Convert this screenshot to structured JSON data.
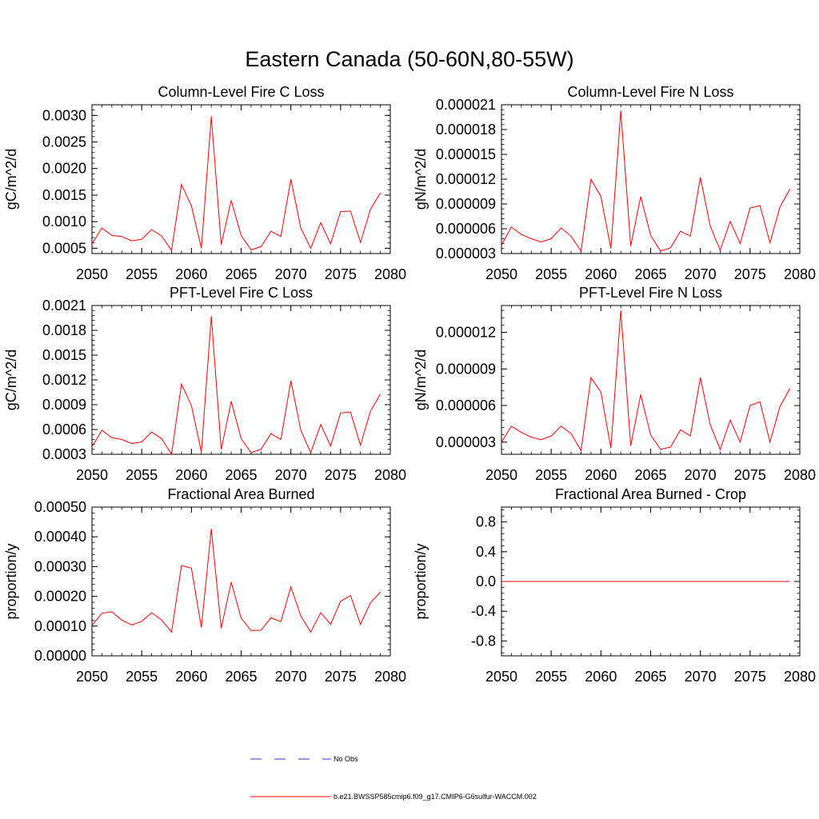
{
  "figure": {
    "title": "Eastern Canada (50-60N,80-55W)"
  },
  "legend": {
    "entries": [
      {
        "label": "No Obs",
        "color": "#3333cc",
        "style": "dashed"
      },
      {
        "label": "b.e21.BWSSP585cmip6.f09_g17.CMIP6-G6sulfur-WACCM.002",
        "color": "#ff0000",
        "style": "solid"
      }
    ]
  },
  "chart_data": [
    {
      "type": "line",
      "title": "Column-Level Fire C Loss",
      "ylabel": "gC/m^2/d",
      "xlim": [
        2050,
        2080
      ],
      "ylim": [
        0.0004,
        0.0032
      ],
      "xticks": [
        "2050",
        "2055",
        "2060",
        "2065",
        "2070",
        "2075",
        "2080"
      ],
      "yticks": [
        "0.0005",
        "0.0010",
        "0.0015",
        "0.0020",
        "0.0025",
        "0.0030"
      ],
      "ytick_values": [
        0.0005,
        0.001,
        0.0015,
        0.002,
        0.0025,
        0.003
      ],
      "series": [
        {
          "color": "#ff0000",
          "x": [
            2050,
            2051,
            2052,
            2053,
            2054,
            2055,
            2056,
            2057,
            2058,
            2059,
            2060,
            2061,
            2062,
            2063,
            2064,
            2065,
            2066,
            2067,
            2068,
            2069,
            2070,
            2071,
            2072,
            2073,
            2074,
            2075,
            2076,
            2077,
            2078,
            2079
          ],
          "values": [
            0.00058,
            0.00088,
            0.00074,
            0.00072,
            0.00064,
            0.00067,
            0.00085,
            0.00073,
            0.00046,
            0.0017,
            0.0013,
            0.0005,
            0.00298,
            0.00057,
            0.0014,
            0.00074,
            0.00047,
            0.00053,
            0.00082,
            0.00072,
            0.0018,
            0.00088,
            0.0005,
            0.00098,
            0.00058,
            0.00119,
            0.0012,
            0.00061,
            0.00123,
            0.00154
          ]
        }
      ]
    },
    {
      "type": "line",
      "title": "Column-Level Fire N Loss",
      "ylabel": "gN/m^2/d",
      "xlim": [
        2050,
        2080
      ],
      "ylim": [
        3e-06,
        2.1e-05
      ],
      "xticks": [
        "2050",
        "2055",
        "2060",
        "2065",
        "2070",
        "2075",
        "2080"
      ],
      "yticks": [
        "0.000003",
        "0.000006",
        "0.000009",
        "0.000012",
        "0.000015",
        "0.000018",
        "0.000021"
      ],
      "ytick_values": [
        3e-06,
        6e-06,
        9e-06,
        1.2e-05,
        1.5e-05,
        1.8e-05,
        2.1e-05
      ],
      "series": [
        {
          "color": "#ff0000",
          "x": [
            2050,
            2051,
            2052,
            2053,
            2054,
            2055,
            2056,
            2057,
            2058,
            2059,
            2060,
            2061,
            2062,
            2063,
            2064,
            2065,
            2066,
            2067,
            2068,
            2069,
            2070,
            2071,
            2072,
            2073,
            2074,
            2075,
            2076,
            2077,
            2078,
            2079
          ],
          "values": [
            4e-06,
            6.2e-06,
            5.3e-06,
            4.8e-06,
            4.4e-06,
            4.8e-06,
            6.1e-06,
            5.1e-06,
            3.3e-06,
            1.2e-05,
            9.9e-06,
            3.6e-06,
            2.03e-05,
            3.9e-06,
            9.9e-06,
            5.2e-06,
            3.3e-06,
            3.7e-06,
            5.7e-06,
            5.1e-06,
            1.22e-05,
            6.3e-06,
            3.4e-06,
            6.9e-06,
            4.2e-06,
            8.5e-06,
            8.8e-06,
            4.3e-06,
            8.6e-06,
            1.08e-05
          ]
        }
      ]
    },
    {
      "type": "line",
      "title": "PFT-Level Fire C Loss",
      "ylabel": "gC/m^2/d",
      "xlim": [
        2050,
        2080
      ],
      "ylim": [
        0.0003,
        0.0021
      ],
      "xticks": [
        "2050",
        "2055",
        "2060",
        "2065",
        "2070",
        "2075",
        "2080"
      ],
      "yticks": [
        "0.0003",
        "0.0006",
        "0.0009",
        "0.0012",
        "0.0015",
        "0.0018",
        "0.0021"
      ],
      "ytick_values": [
        0.0003,
        0.0006,
        0.0009,
        0.0012,
        0.0015,
        0.0018,
        0.0021
      ],
      "series": [
        {
          "color": "#ff0000",
          "x": [
            2050,
            2051,
            2052,
            2053,
            2054,
            2055,
            2056,
            2057,
            2058,
            2059,
            2060,
            2061,
            2062,
            2063,
            2064,
            2065,
            2066,
            2067,
            2068,
            2069,
            2070,
            2071,
            2072,
            2073,
            2074,
            2075,
            2076,
            2077,
            2078,
            2079
          ],
          "values": [
            0.00039,
            0.00059,
            0.0005,
            0.00048,
            0.00043,
            0.00045,
            0.00057,
            0.00049,
            0.0003,
            0.00115,
            0.00089,
            0.00033,
            0.00197,
            0.00036,
            0.00094,
            0.00049,
            0.00032,
            0.00036,
            0.00055,
            0.00048,
            0.00119,
            0.00059,
            0.00032,
            0.00066,
            0.0004,
            0.0008,
            0.00081,
            0.00041,
            0.00082,
            0.00103
          ]
        }
      ]
    },
    {
      "type": "line",
      "title": "PFT-Level Fire N Loss",
      "ylabel": "gN/m^2/d",
      "xlim": [
        2050,
        2080
      ],
      "ylim": [
        2e-06,
        1.42e-05
      ],
      "xticks": [
        "2050",
        "2055",
        "2060",
        "2065",
        "2070",
        "2075",
        "2080"
      ],
      "yticks": [
        "0.000003",
        "0.000006",
        "0.000009",
        "0.000012"
      ],
      "ytick_values": [
        3e-06,
        6e-06,
        9e-06,
        1.2e-05
      ],
      "series": [
        {
          "color": "#ff0000",
          "x": [
            2050,
            2051,
            2052,
            2053,
            2054,
            2055,
            2056,
            2057,
            2058,
            2059,
            2060,
            2061,
            2062,
            2063,
            2064,
            2065,
            2066,
            2067,
            2068,
            2069,
            2070,
            2071,
            2072,
            2073,
            2074,
            2075,
            2076,
            2077,
            2078,
            2079
          ],
          "values": [
            3e-06,
            4.3e-06,
            3.8e-06,
            3.4e-06,
            3.2e-06,
            3.5e-06,
            4.3e-06,
            3.7e-06,
            2.3e-06,
            8.3e-06,
            7.1e-06,
            2.5e-06,
            1.38e-05,
            2.7e-06,
            6.9e-06,
            3.6e-06,
            2.4e-06,
            2.6e-06,
            4e-06,
            3.5e-06,
            8.3e-06,
            4.4e-06,
            2.4e-06,
            4.8e-06,
            3e-06,
            6e-06,
            6.3e-06,
            3e-06,
            5.9e-06,
            7.4e-06
          ]
        }
      ]
    },
    {
      "type": "line",
      "title": "Fractional Area Burned",
      "ylabel": "proportion/y",
      "xlim": [
        2050,
        2080
      ],
      "ylim": [
        0.0,
        0.0005
      ],
      "xticks": [
        "2050",
        "2055",
        "2060",
        "2065",
        "2070",
        "2075",
        "2080"
      ],
      "yticks": [
        "0.00000",
        "0.00010",
        "0.00020",
        "0.00030",
        "0.00040",
        "0.00050"
      ],
      "ytick_values": [
        0.0,
        0.0001,
        0.0002,
        0.0003,
        0.0004,
        0.0005
      ],
      "series": [
        {
          "color": "#ff0000",
          "x": [
            2050,
            2051,
            2052,
            2053,
            2054,
            2055,
            2056,
            2057,
            2058,
            2059,
            2060,
            2061,
            2062,
            2063,
            2064,
            2065,
            2066,
            2067,
            2068,
            2069,
            2070,
            2071,
            2072,
            2073,
            2074,
            2075,
            2076,
            2077,
            2078,
            2079
          ],
          "values": [
            0.000102,
            0.000143,
            0.000148,
            0.00012,
            0.000104,
            0.000116,
            0.000145,
            0.000121,
            8e-05,
            0.000303,
            0.000295,
            9.5e-05,
            0.000427,
            9.3e-05,
            0.000248,
            0.000127,
            8.5e-05,
            8.6e-05,
            0.000128,
            0.000115,
            0.000232,
            0.000134,
            8e-05,
            0.000145,
            0.000106,
            0.000183,
            0.000203,
            0.000106,
            0.000178,
            0.000214
          ]
        }
      ]
    },
    {
      "type": "line",
      "title": "Fractional Area Burned - Crop",
      "ylabel": "proportion/y",
      "xlim": [
        2050,
        2080
      ],
      "ylim": [
        -1.0,
        1.0
      ],
      "xticks": [
        "2050",
        "2055",
        "2060",
        "2065",
        "2070",
        "2075",
        "2080"
      ],
      "yticks": [
        "-0.8",
        "-0.4",
        "0.0",
        "0.4",
        "0.8"
      ],
      "ytick_values": [
        -0.8,
        -0.4,
        0.0,
        0.4,
        0.8
      ],
      "series": [
        {
          "color": "#ff0000",
          "x": [
            2050,
            2051,
            2052,
            2053,
            2054,
            2055,
            2056,
            2057,
            2058,
            2059,
            2060,
            2061,
            2062,
            2063,
            2064,
            2065,
            2066,
            2067,
            2068,
            2069,
            2070,
            2071,
            2072,
            2073,
            2074,
            2075,
            2076,
            2077,
            2078,
            2079
          ],
          "values": [
            0,
            0,
            0,
            0,
            0,
            0,
            0,
            0,
            0,
            0,
            0,
            0,
            0,
            0,
            0,
            0,
            0,
            0,
            0,
            0,
            0,
            0,
            0,
            0,
            0,
            0,
            0,
            0,
            0,
            0
          ]
        }
      ]
    }
  ]
}
